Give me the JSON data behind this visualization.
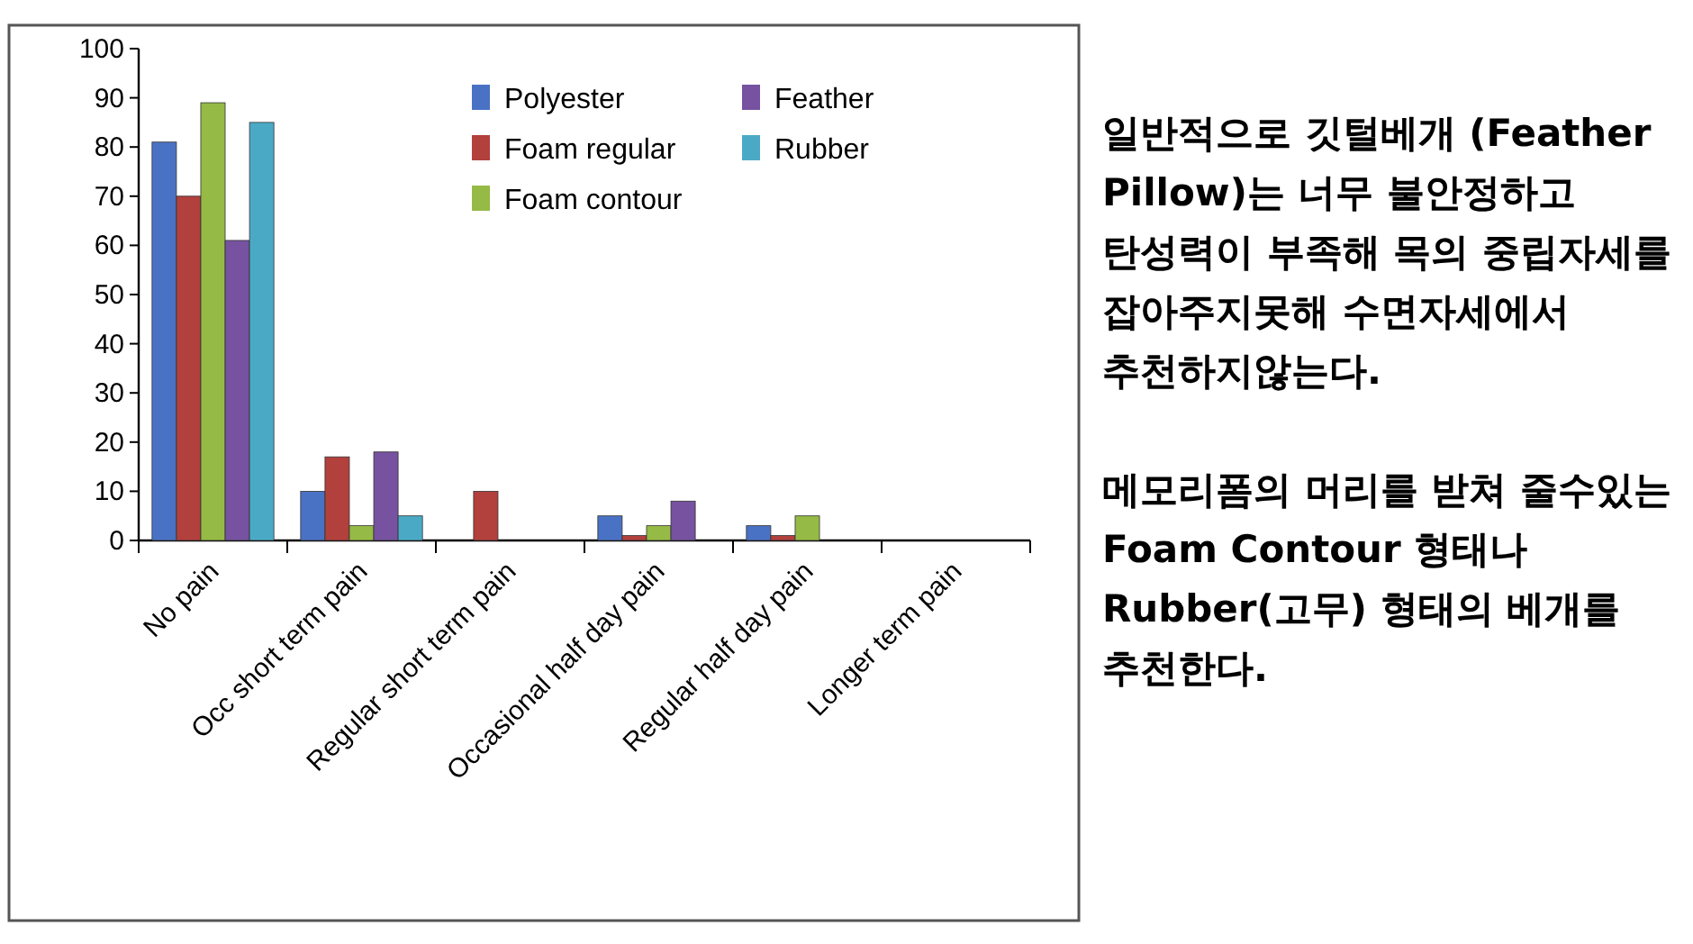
{
  "chart_data": {
    "type": "bar",
    "categories": [
      "No pain",
      "Occ short term pain",
      "Regular short term pain",
      "Occasional half day pain",
      "Regular half day pain",
      "Longer term pain"
    ],
    "series": [
      {
        "name": "Polyester",
        "color": "#4a72c4",
        "values": [
          81,
          10,
          0,
          5,
          3,
          0
        ]
      },
      {
        "name": "Foam regular",
        "color": "#b2403c",
        "values": [
          70,
          17,
          10,
          1,
          1,
          0
        ]
      },
      {
        "name": "Foam contour",
        "color": "#95ba45",
        "values": [
          89,
          3,
          0,
          3,
          5,
          0
        ]
      },
      {
        "name": "Feather",
        "color": "#7652a0",
        "values": [
          61,
          18,
          0,
          8,
          0,
          0
        ]
      },
      {
        "name": "Rubber",
        "color": "#4aaac6",
        "values": [
          85,
          5,
          0,
          0,
          0,
          0
        ]
      }
    ],
    "ylim": [
      0,
      100
    ],
    "yticks": [
      0,
      10,
      20,
      30,
      40,
      50,
      60,
      70,
      80,
      90,
      100
    ],
    "legend": "top right",
    "annotations": [
      "일반적으로 깃털베개 (Feather Pillow)는 너무 불안정하고 탄성력이 부족해 목의 중립자세를 잡아주지못해 수면자세에서 추천하지않는다.",
      "메모리폼의 머리를 받쳐 줄수있는 Foam Contour 형태나 Rubber(고무) 형태의 베개를 추천한다."
    ]
  }
}
